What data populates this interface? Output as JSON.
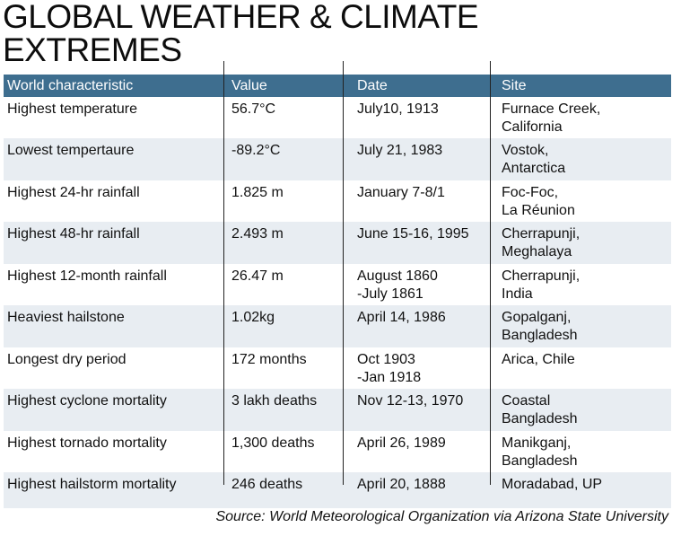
{
  "title_line1": "GLOBAL WEATHER & CLIMATE",
  "title_line2": "EXTREMES",
  "headers": [
    "World characteristic",
    "Value",
    "Date",
    "Site"
  ],
  "rows": [
    [
      "Highest temperature",
      "56.7°C",
      "July10, 1913",
      "Furnace Creek,\nCalifornia"
    ],
    [
      "Lowest tempertaure",
      "-89.2°C",
      "July 21, 1983",
      "Vostok,\nAntarctica"
    ],
    [
      "Highest 24-hr rainfall",
      "1.825 m",
      "January 7-8/1",
      "Foc-Foc,\nLa Réunion"
    ],
    [
      "Highest 48-hr rainfall",
      "2.493 m",
      "June 15-16, 1995",
      "Cherrapunji,\nMeghalaya"
    ],
    [
      "Highest 12-month rainfall",
      "26.47 m",
      "August 1860\n-July 1861",
      "Cherrapunji,\nIndia"
    ],
    [
      "Heaviest hailstone",
      "1.02kg",
      "April 14, 1986",
      "Gopalganj,\nBangladesh"
    ],
    [
      "Longest dry period",
      "172 months",
      "Oct 1903\n-Jan 1918",
      "Arica, Chile"
    ],
    [
      "Highest cyclone mortality",
      "3 lakh deaths",
      "Nov 12-13, 1970",
      "Coastal\nBangladesh"
    ],
    [
      "Highest tornado mortality",
      "1,300 deaths",
      "April 26, 1989",
      "Manikganj,\nBangladesh"
    ],
    [
      "Highest hailstorm mortality",
      "246 deaths",
      "April 20, 1888",
      "Moradabad, UP"
    ]
  ],
  "source": "Source: World Meteorological Organization via Arizona State University",
  "colors": {
    "header_bg": "#3e6e8f",
    "alt_row_bg": "#e8edf2"
  }
}
